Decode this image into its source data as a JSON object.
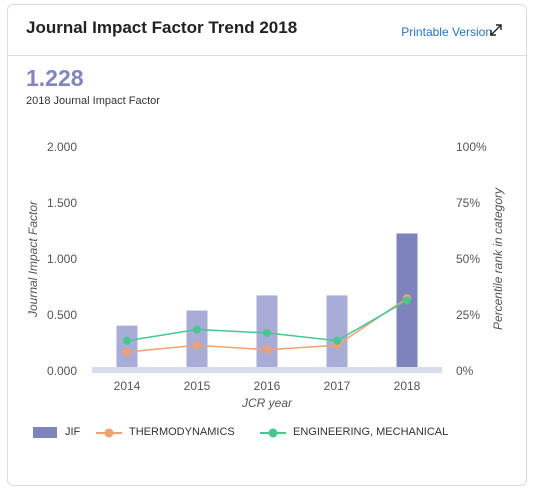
{
  "header": {
    "title": "Journal Impact Factor Trend 2018",
    "printable": "Printable Version",
    "expand_icon": "expand-arrows-icon"
  },
  "summary": {
    "value": "1.228",
    "label": "2018 Journal Impact Factor"
  },
  "colors": {
    "jif_bar": "#a9acd7",
    "jif_bar_current": "#7e82bd",
    "thermo": "#f2a06f",
    "mech": "#43c890",
    "link": "#1f73c9"
  },
  "chart_data": {
    "type": "bar",
    "categories": [
      "2014",
      "2015",
      "2016",
      "2017",
      "2018"
    ],
    "left_axis": {
      "label": "Journal Impact Factor",
      "ticks": [
        "0.000",
        "0.500",
        "1.000",
        "1.500",
        "2.000"
      ],
      "tick_values": [
        0,
        0.5,
        1.0,
        1.5,
        2.0
      ],
      "ylim": [
        0,
        2.0
      ]
    },
    "right_axis": {
      "label": "Percentile rank in category",
      "ticks": [
        "0%",
        "25%",
        "50%",
        "75%",
        "100%"
      ],
      "tick_values": [
        0,
        25,
        50,
        75,
        100
      ],
      "ylim": [
        0,
        100
      ]
    },
    "xlabel": "JCR year",
    "series": [
      {
        "name": "JIF",
        "type": "bar",
        "axis": "left",
        "values": [
          0.405,
          0.54,
          0.675,
          0.675,
          1.228
        ]
      },
      {
        "name": "THERMODYNAMICS",
        "type": "line",
        "axis": "right",
        "values": [
          8.5,
          11.5,
          9.5,
          11.5,
          32.5
        ]
      },
      {
        "name": "ENGINEERING, MECHANICAL",
        "type": "line",
        "axis": "right",
        "values": [
          13.5,
          18.5,
          17.0,
          13.5,
          31.5
        ]
      }
    ],
    "grid": false,
    "legend_position": "bottom-left"
  }
}
